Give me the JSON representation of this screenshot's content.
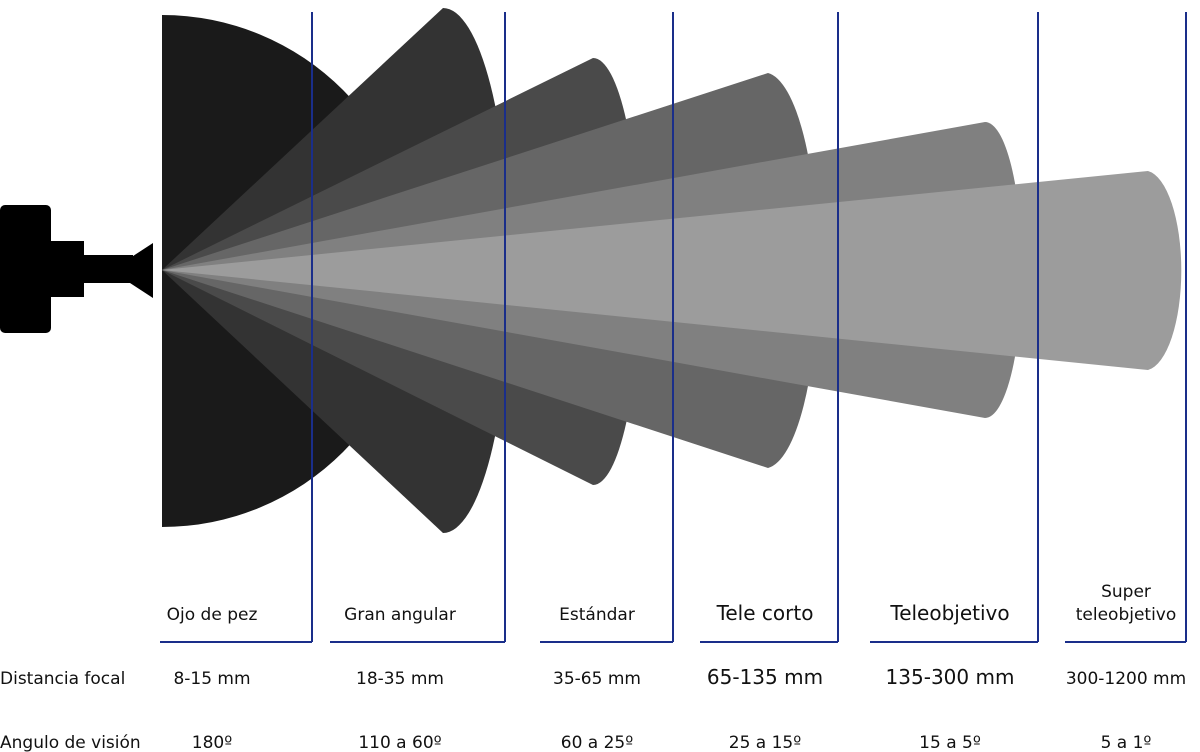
{
  "row_labels": {
    "focal": "Distancia focal",
    "angle": "Angulo de visión"
  },
  "columns": [
    {
      "label": [
        "Ojo de pez"
      ],
      "focal": "8-15 mm",
      "angle": "180º"
    },
    {
      "label": [
        "Gran angular"
      ],
      "focal": "18-35 mm",
      "angle": "110 a 60º"
    },
    {
      "label": [
        "Estándar"
      ],
      "focal": "35-65 mm",
      "angle": "60 a 25º"
    },
    {
      "label": [
        "Tele corto"
      ],
      "focal": "65-135 mm",
      "angle": "25 a 15º"
    },
    {
      "label": [
        "Teleobjetivo"
      ],
      "focal": "135-300 mm",
      "angle": "15 a 5º"
    },
    {
      "label": [
        "Super",
        "teleobjetivo"
      ],
      "focal": "300-1200 mm",
      "angle": "5 a 1º"
    }
  ]
}
